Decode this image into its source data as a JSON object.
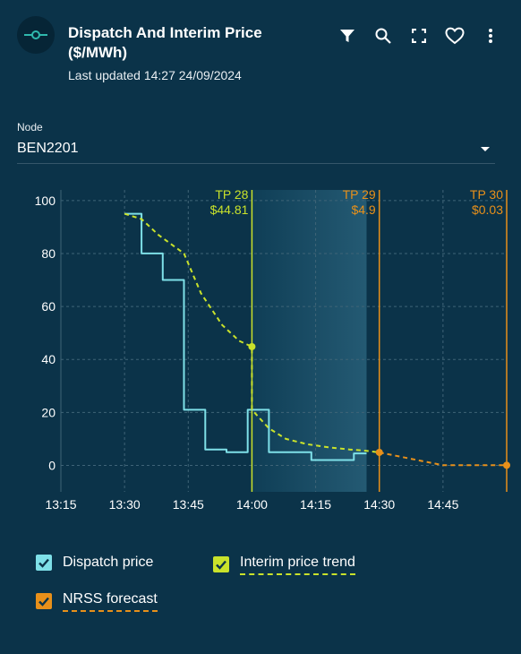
{
  "header": {
    "title": "Dispatch And Interim Price ($/MWh)",
    "last_updated": "Last updated 14:27 24/09/2024",
    "logo_icon": "node-icon",
    "toolbar": [
      "filter-icon",
      "search-icon",
      "fullscreen-icon",
      "heart-icon",
      "more-vert-icon"
    ]
  },
  "node": {
    "label": "Node",
    "value": "BEN2201"
  },
  "colors": {
    "background": "#0b3349",
    "dispatch": "#7ee0e8",
    "interim": "#c9e22b",
    "nrss": "#e8901a",
    "grid": "#3f6477"
  },
  "chart_data": {
    "type": "line",
    "x_ticks": [
      "13:15",
      "13:30",
      "13:45",
      "14:00",
      "14:15",
      "14:30",
      "14:45"
    ],
    "y_ticks": [
      0,
      20,
      40,
      60,
      80,
      100
    ],
    "xlim": [
      "13:15",
      "15:00"
    ],
    "ylim": [
      -10,
      104
    ],
    "grid": true,
    "series": [
      {
        "name": "Dispatch price",
        "style": "step",
        "x": [
          "13:30",
          "13:34",
          "13:34",
          "13:39",
          "13:39",
          "13:44",
          "13:44",
          "13:49",
          "13:49",
          "13:54",
          "13:54",
          "13:59",
          "13:59",
          "14:04",
          "14:04",
          "14:09",
          "14:09",
          "14:14",
          "14:14",
          "14:19",
          "14:19",
          "14:24",
          "14:24",
          "14:27"
        ],
        "y": [
          95,
          95,
          80,
          80,
          70,
          70,
          21,
          21,
          6,
          6,
          5,
          5,
          21,
          21,
          5,
          5,
          5,
          5,
          2,
          2,
          2,
          2,
          4.5,
          4.5
        ]
      },
      {
        "name": "Interim price trend",
        "style": "dashed",
        "x": [
          "13:30",
          "13:34",
          "13:38",
          "13:44",
          "13:48",
          "13:53",
          "13:57",
          "14:00",
          "14:00",
          "14:04",
          "14:08",
          "14:13",
          "14:18",
          "14:23",
          "14:27",
          "14:30"
        ],
        "y": [
          95,
          93,
          87,
          80,
          65,
          53,
          47,
          44.81,
          21,
          14,
          10,
          8,
          6.8,
          6,
          5.5,
          4.9
        ]
      },
      {
        "name": "NRSS forecast",
        "style": "dashed",
        "x": [
          "14:30",
          "14:45",
          "15:00"
        ],
        "y": [
          4.9,
          0.03,
          0.03
        ]
      }
    ],
    "markers": [
      {
        "label": "TP 28",
        "value": "$44.81",
        "x": "14:00",
        "y": 44.81,
        "series": "Interim price trend"
      },
      {
        "label": "TP 29",
        "value": "$4.9",
        "x": "14:30",
        "y": 4.9,
        "series": "NRSS forecast"
      },
      {
        "label": "TP 30",
        "value": "$0.03",
        "x": "15:00",
        "y": 0.03,
        "series": "NRSS forecast"
      }
    ],
    "shaded_range": [
      "14:00",
      "14:27"
    ]
  },
  "legend": [
    {
      "label": "Dispatch price",
      "checked": true,
      "key": "dispatch"
    },
    {
      "label": "Interim price trend",
      "checked": true,
      "key": "interim"
    },
    {
      "label": "NRSS forecast",
      "checked": true,
      "key": "nrss"
    }
  ]
}
